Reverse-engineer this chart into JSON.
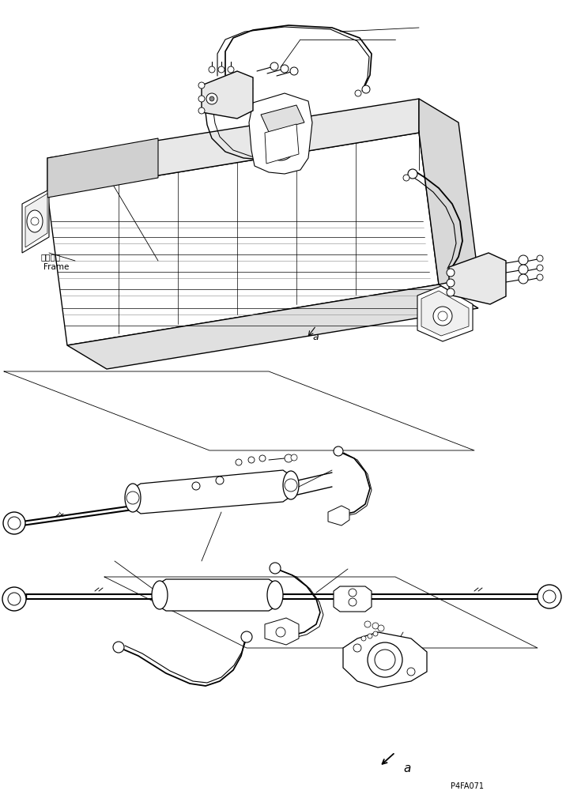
{
  "background_color": "#ffffff",
  "line_color": "#000000",
  "frame_label_jp": "フレーム",
  "frame_label_en": "Frame",
  "part_code": "P4FA071",
  "ref_letter": "a",
  "fig_width": 7.16,
  "fig_height": 10.01,
  "dpi": 100
}
